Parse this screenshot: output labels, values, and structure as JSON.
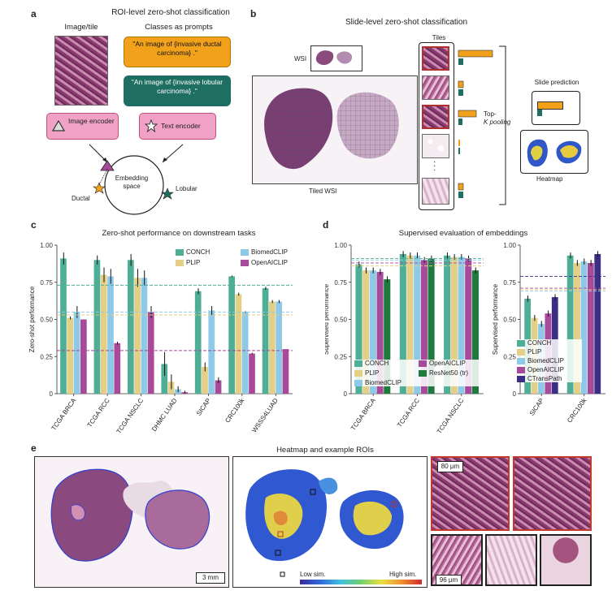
{
  "panel_a": {
    "label": "a",
    "title": "ROI-level zero-shot classification",
    "image_tile_label": "Image/tile",
    "classes_label": "Classes as prompts",
    "prompt1": "\"An image of {invasive ductal carcinoma} .\"",
    "prompt2": "\"An image of {invasive lobular carcinoma} .\"",
    "image_encoder": "Image encoder",
    "text_encoder": "Text encoder",
    "embedding_space": "Embedding space",
    "ductal": "Ductal",
    "lobular": "Lobular"
  },
  "panel_b": {
    "label": "b",
    "title": "Slide-level zero-shot classification",
    "wsi": "WSI",
    "tiles": "Tiles",
    "tiled_wsi": "Tiled WSI",
    "topk_1": "Top-",
    "topk_2": "K pooling",
    "slide_prediction": "Slide prediction",
    "heatmap": "Heatmap"
  },
  "panel_c": {
    "label": "c",
    "title": "Zero-shot performance on downstream tasks",
    "ylabel": "Zero-shot performance"
  },
  "panel_d": {
    "label": "d",
    "title": "Supervised evaluation of embeddings",
    "ylabel_left": "Supervised performance",
    "ylabel_right": "Supervised performance"
  },
  "panel_e": {
    "label": "e",
    "title": "Heatmap and example ROIs",
    "scale_3mm": "3 mm",
    "scale_80um": "80 μm",
    "scale_96um": "96 μm",
    "low_sim": "Low sim.",
    "high_sim": "High sim."
  },
  "colors": {
    "CONCH": "#4fae96",
    "PLIP": "#e3cf86",
    "BiomedCLIP": "#8ec9e8",
    "OpenAICLIP": "#a84a9a",
    "ResNet50": "#1f7a3d",
    "CTransPath": "#3a2f85",
    "prompt_ductal": "#f2a21a",
    "prompt_lobular": "#1f6e62"
  },
  "chart_data": [
    {
      "type": "bar",
      "title": "Zero-shot performance on downstream tasks",
      "ylabel": "Zero-shot performance",
      "ylim": [
        0,
        1.0
      ],
      "yticks": [
        "0",
        "0.25",
        "0.50",
        "0.75",
        "1.00"
      ],
      "categories": [
        "TCGA BRCA",
        "TCGA RCC",
        "TCGA NSCLC",
        "DHMC LUAD",
        "SICAP",
        "CRC100k",
        "WSSS4LUAD"
      ],
      "series": [
        {
          "name": "CONCH",
          "values": [
            0.91,
            0.9,
            0.9,
            0.2,
            0.69,
            0.79,
            0.71
          ]
        },
        {
          "name": "PLIP",
          "values": [
            0.51,
            0.8,
            0.78,
            0.08,
            0.18,
            0.67,
            0.62
          ]
        },
        {
          "name": "BiomedCLIP",
          "values": [
            0.55,
            0.79,
            0.78,
            0.03,
            0.56,
            0.55,
            0.62
          ]
        },
        {
          "name": "OpenAICLIP",
          "values": [
            0.5,
            0.34,
            0.55,
            0.01,
            0.09,
            0.27,
            0.3
          ]
        }
      ],
      "errors": [
        [
          0.04,
          0.03,
          0.04,
          0.08,
          0.02,
          0.005,
          0.01
        ],
        [
          0.01,
          0.05,
          0.06,
          0.05,
          0.03,
          0.01,
          0.01
        ],
        [
          0.04,
          0.05,
          0.05,
          0.02,
          0.03,
          0.005,
          0.01
        ],
        [
          0.0,
          0.01,
          0.04,
          0.01,
          0.02,
          0.005,
          0.0
        ]
      ],
      "reference_lines": [
        0.73,
        0.55,
        0.53,
        0.29
      ],
      "legend": [
        "CONCH",
        "BiomedCLIP",
        "PLIP",
        "OpenAICLIP"
      ]
    },
    {
      "type": "bar",
      "title": "Supervised evaluation of embeddings",
      "ylabel": "Supervised performance",
      "ylim": [
        0,
        1.0
      ],
      "yticks": [
        "0",
        "0.25",
        "0.50",
        "0.75",
        "1.00"
      ],
      "categories": [
        "TCGA BRCA",
        "TCGA RCC",
        "TCGA NSCLC"
      ],
      "series": [
        {
          "name": "CONCH",
          "values": [
            0.87,
            0.94,
            0.93
          ]
        },
        {
          "name": "PLIP",
          "values": [
            0.83,
            0.93,
            0.92
          ]
        },
        {
          "name": "BiomedCLIP",
          "values": [
            0.83,
            0.93,
            0.92
          ]
        },
        {
          "name": "OpenAICLIP",
          "values": [
            0.82,
            0.9,
            0.91
          ]
        },
        {
          "name": "ResNet50 (tr)",
          "values": [
            0.77,
            0.91,
            0.83
          ]
        }
      ],
      "legend": [
        "CONCH",
        "OpenAICLIP",
        "PLIP",
        "ResNet50 (tr)",
        "BiomedCLIP"
      ]
    },
    {
      "type": "bar",
      "ylabel": "Supervised performance",
      "ylim": [
        0,
        1.0
      ],
      "yticks": [
        "0",
        "0.25",
        "0.50",
        "0.75",
        "1.00"
      ],
      "categories": [
        "SICAP",
        "CRC100k"
      ],
      "series": [
        {
          "name": "CONCH",
          "values": [
            0.64,
            0.93
          ]
        },
        {
          "name": "PLIP",
          "values": [
            0.51,
            0.88
          ]
        },
        {
          "name": "BiomedCLIP",
          "values": [
            0.47,
            0.89
          ]
        },
        {
          "name": "OpenAICLIP",
          "values": [
            0.54,
            0.88
          ]
        },
        {
          "name": "CTransPath",
          "values": [
            0.65,
            0.94
          ]
        }
      ],
      "legend": [
        "CONCH",
        "PLIP",
        "BiomedCLIP",
        "OpenAICLIP",
        "CTransPath"
      ]
    }
  ]
}
